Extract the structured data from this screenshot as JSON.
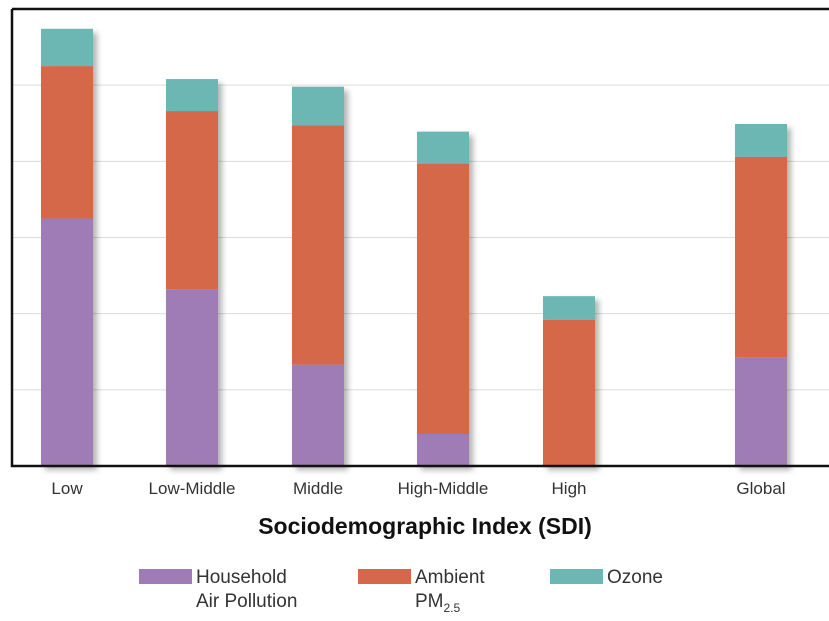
{
  "chart_data": {
    "type": "bar",
    "stacked": true,
    "categories": [
      "Low",
      "Low-Middle",
      "Middle",
      "High-Middle",
      "High",
      "Global"
    ],
    "series": [
      {
        "name": "Household Air Pollution",
        "color": "#a07cb6",
        "values": [
          32.5,
          23.2,
          13.3,
          4.2,
          0.0,
          14.3
        ]
      },
      {
        "name": "Ambient PM2.5",
        "color": "#d4684a",
        "values": [
          20.0,
          23.4,
          31.4,
          35.5,
          19.2,
          26.3
        ]
      },
      {
        "name": "Ozone",
        "color": "#6cb6b3",
        "values": [
          4.9,
          4.2,
          5.1,
          4.2,
          3.1,
          4.3
        ]
      }
    ],
    "xlabel": "Sociodemographic Index (SDI)",
    "ylim": [
      0,
      60
    ],
    "grid": true,
    "legend_position": "bottom"
  },
  "legend": {
    "items": [
      {
        "line1": "Household",
        "line2": "Air Pollution"
      },
      {
        "line1": "Ambient",
        "line2_main": "PM",
        "line2_sub": "2.5"
      },
      {
        "line1": "Ozone"
      }
    ]
  }
}
